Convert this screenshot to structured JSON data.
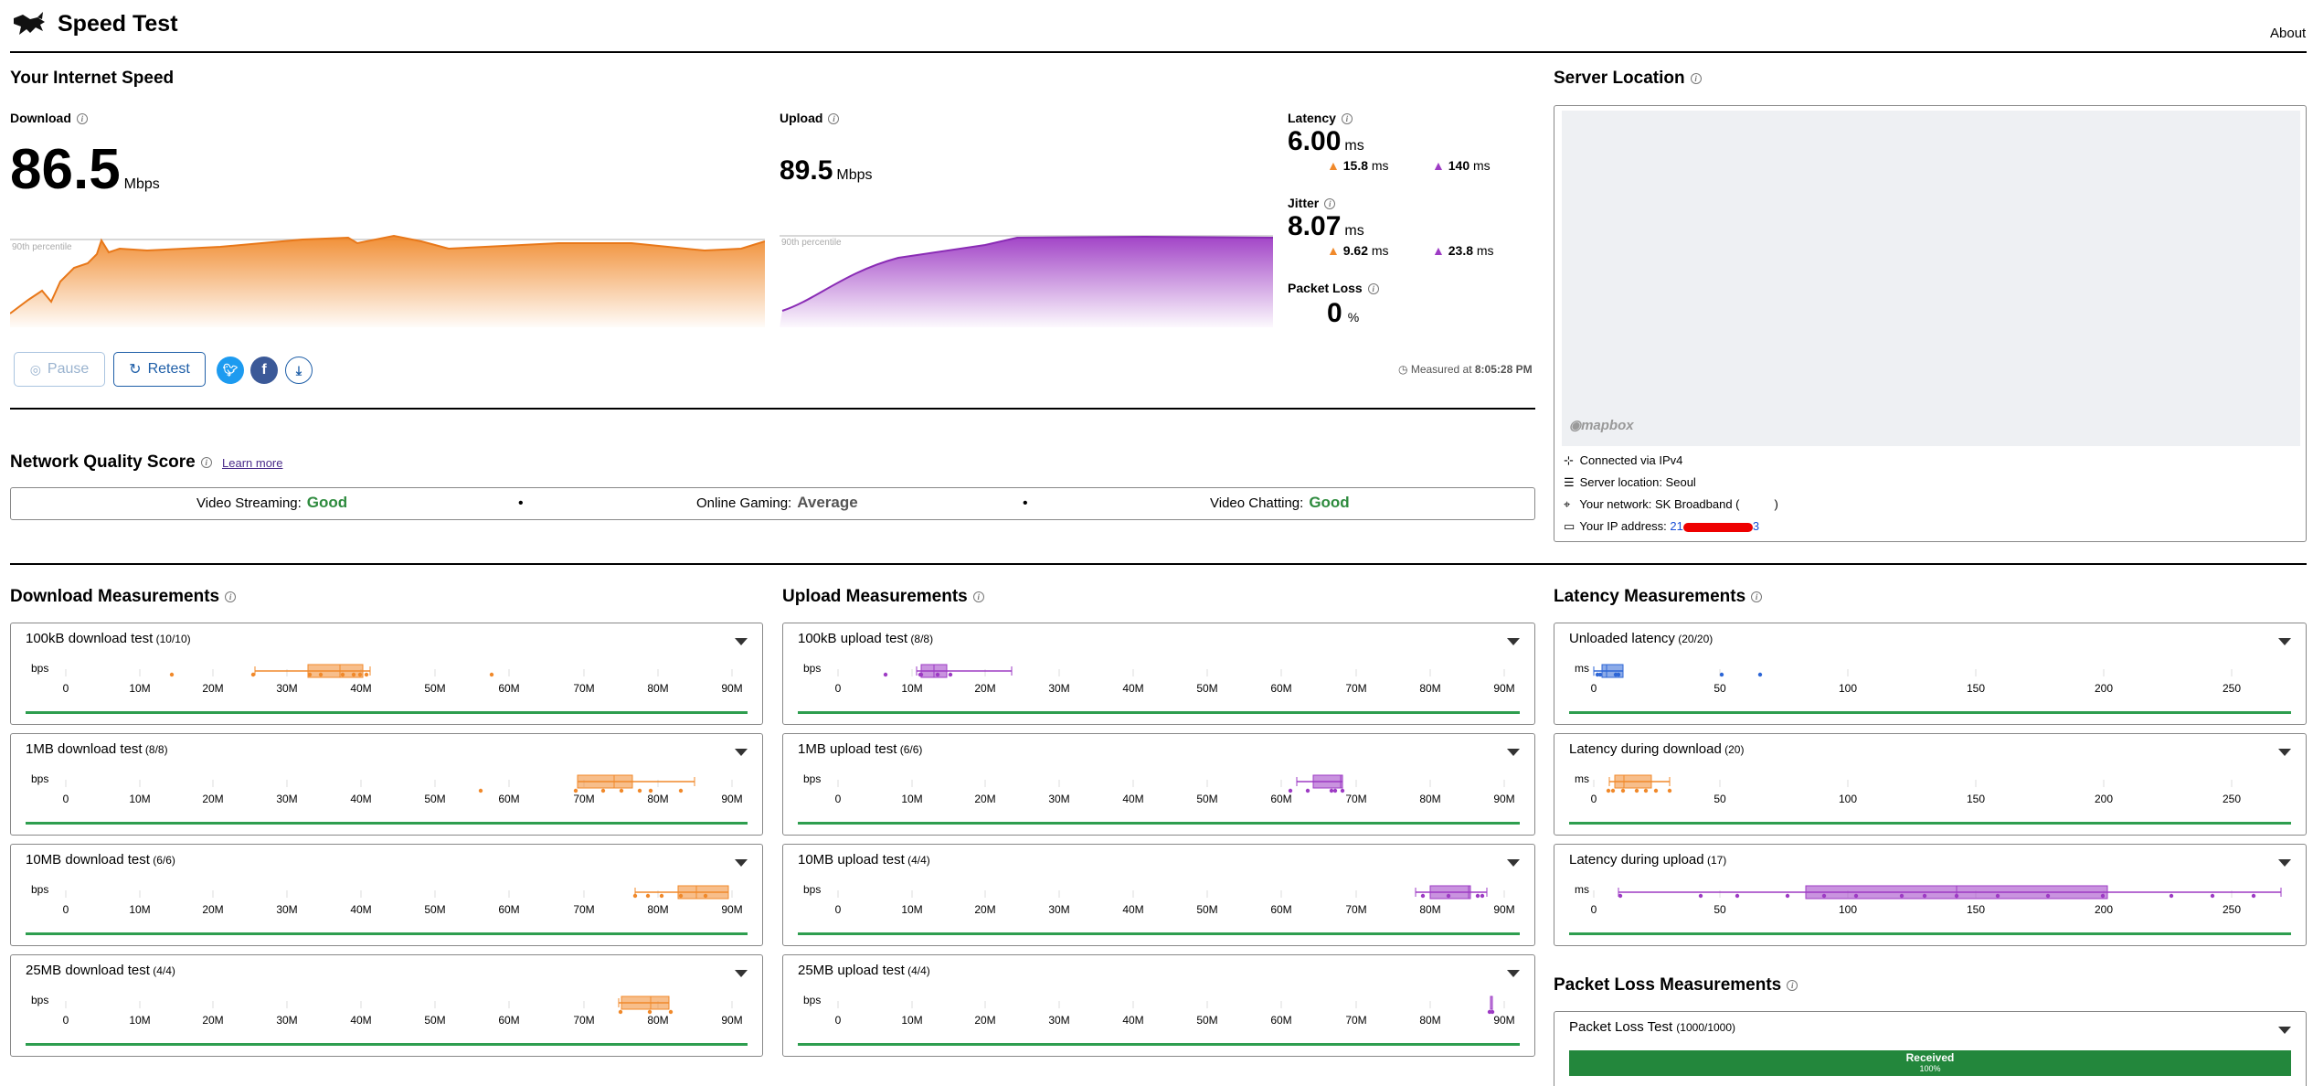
{
  "header": {
    "title": "Speed Test",
    "about": "About",
    "logo_icon": "rabbit-logo-icon"
  },
  "speed": {
    "title": "Your Internet Speed",
    "download": {
      "label": "Download",
      "value": "86.5",
      "unit": "Mbps",
      "percentile": "90th percentile"
    },
    "upload": {
      "label": "Upload",
      "value": "89.5",
      "unit": "Mbps",
      "percentile": "90th percentile"
    },
    "latency": {
      "label": "Latency",
      "value": "6.00",
      "unit": "ms",
      "down": "15.8",
      "down_unit": "ms",
      "up": "140",
      "up_unit": "ms"
    },
    "jitter": {
      "label": "Jitter",
      "value": "8.07",
      "unit": "ms",
      "down": "9.62",
      "down_unit": "ms",
      "up": "23.8",
      "up_unit": "ms"
    },
    "packet_loss": {
      "label": "Packet Loss",
      "value": "0",
      "unit": "%"
    },
    "measured_prefix": "Measured at",
    "measured_time": "8:05:28 PM",
    "buttons": {
      "pause": "Pause",
      "retest": "Retest"
    },
    "colors": {
      "download": "#f0892b",
      "upload": "#9d3bc4"
    }
  },
  "server": {
    "title": "Server Location",
    "map_credit": "mapbox",
    "connected": "Connected via IPv4",
    "location": "Server location: Seoul",
    "network": "Your network: SK Broadband (",
    "network_end": ")",
    "ip_label": "Your IP address:",
    "ip_start": "21",
    "ip_end": "3"
  },
  "quality": {
    "title": "Network Quality Score",
    "learn_more": "Learn more",
    "items": [
      {
        "label": "Video Streaming:",
        "value": "Good"
      },
      {
        "label": "Online Gaming:",
        "value": "Average"
      },
      {
        "label": "Video Chatting:",
        "value": "Good"
      }
    ],
    "separator": "•"
  },
  "measurements": {
    "download": {
      "title": "Download Measurements",
      "tests": [
        {
          "name": "100kB download test",
          "count": "(10/10)"
        },
        {
          "name": "1MB download test",
          "count": "(8/8)"
        },
        {
          "name": "10MB download test",
          "count": "(6/6)"
        },
        {
          "name": "25MB download test",
          "count": "(4/4)"
        }
      ]
    },
    "upload": {
      "title": "Upload Measurements",
      "tests": [
        {
          "name": "100kB upload test",
          "count": "(8/8)"
        },
        {
          "name": "1MB upload test",
          "count": "(6/6)"
        },
        {
          "name": "10MB upload test",
          "count": "(4/4)"
        },
        {
          "name": "25MB upload test",
          "count": "(4/4)"
        }
      ]
    },
    "latency": {
      "title": "Latency Measurements",
      "tests": [
        {
          "name": "Unloaded latency",
          "count": "(20/20)"
        },
        {
          "name": "Latency during download",
          "count": "(20)"
        },
        {
          "name": "Latency during upload",
          "count": "(17)"
        }
      ]
    },
    "packet_loss": {
      "title": "Packet Loss Measurements",
      "test": {
        "name": "Packet Loss Test",
        "count": "(1000/1000)"
      },
      "received_label": "Received",
      "received_pct": "100%"
    },
    "bps_unit": "bps",
    "ms_unit": "ms",
    "bps_ticks": [
      "0",
      "10M",
      "20M",
      "30M",
      "40M",
      "50M",
      "60M",
      "70M",
      "80M",
      "90M"
    ],
    "ms_ticks": [
      "0",
      "50",
      "100",
      "150",
      "200",
      "250"
    ]
  }
}
